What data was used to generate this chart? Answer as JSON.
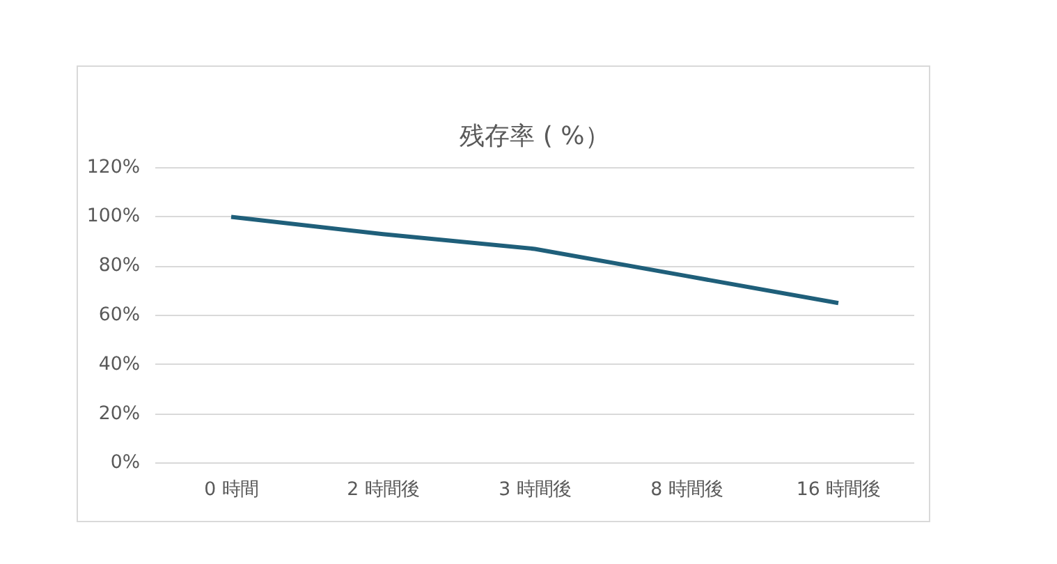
{
  "chart_data": {
    "type": "line",
    "title": "残存率 ( %）",
    "categories": [
      "0 時間",
      "2 時間後",
      "3 時間後",
      "8 時間後",
      "16 時間後"
    ],
    "series": [
      {
        "color": "#1f5f7a",
        "values": [
          100,
          93,
          87,
          76,
          65
        ]
      }
    ],
    "ylim": [
      0,
      120
    ],
    "yticks": [
      {
        "value": 0,
        "label": "0%"
      },
      {
        "value": 20,
        "label": "20%"
      },
      {
        "value": 40,
        "label": "40%"
      },
      {
        "value": 60,
        "label": "60%"
      },
      {
        "value": 80,
        "label": "80%"
      },
      {
        "value": 100,
        "label": "100%"
      },
      {
        "value": 120,
        "label": "120%"
      }
    ],
    "grid": "y",
    "marker": "none",
    "line_style": "solid"
  }
}
